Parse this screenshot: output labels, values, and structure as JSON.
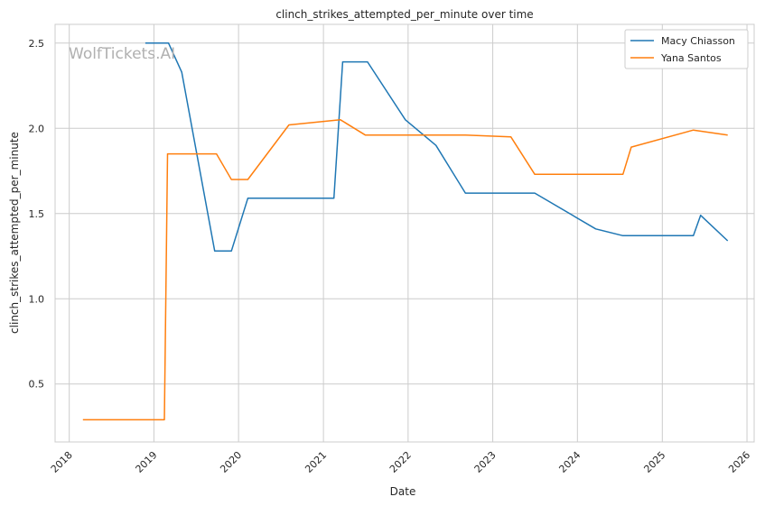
{
  "chart_data": {
    "type": "line",
    "title": "clinch_strikes_attempted_per_minute over time",
    "xlabel": "Date",
    "ylabel": "clinch_strikes_attempted_per_minute",
    "watermark": "WolfTickets.AI",
    "xlim": [
      "2017-11-01",
      "2026-02-01"
    ],
    "ylim": [
      0.16,
      2.61
    ],
    "x_ticks": [
      "2018",
      "2019",
      "2020",
      "2021",
      "2022",
      "2023",
      "2024",
      "2025",
      "2026"
    ],
    "y_ticks": [
      "0.5",
      "1.0",
      "1.5",
      "2.0",
      "2.5"
    ],
    "grid": true,
    "legend_position": "top-right",
    "series": [
      {
        "name": "Macy Chiasson",
        "color": "#1f77b4",
        "points": [
          [
            "2018-11-25",
            2.5
          ],
          [
            "2019-03-05",
            2.5
          ],
          [
            "2019-05-01",
            2.33
          ],
          [
            "2019-09-20",
            1.28
          ],
          [
            "2019-12-01",
            1.28
          ],
          [
            "2020-02-10",
            1.59
          ],
          [
            "2021-02-15",
            1.59
          ],
          [
            "2021-03-25",
            2.39
          ],
          [
            "2021-07-10",
            2.39
          ],
          [
            "2021-12-20",
            2.05
          ],
          [
            "2022-05-01",
            1.9
          ],
          [
            "2022-09-05",
            1.62
          ],
          [
            "2023-07-01",
            1.62
          ],
          [
            "2024-03-20",
            1.41
          ],
          [
            "2024-07-15",
            1.37
          ],
          [
            "2025-05-15",
            1.37
          ],
          [
            "2025-06-15",
            1.49
          ],
          [
            "2025-10-10",
            1.34
          ]
        ]
      },
      {
        "name": "Yana Santos",
        "color": "#ff7f0e",
        "points": [
          [
            "2018-03-01",
            0.29
          ],
          [
            "2019-02-15",
            0.29
          ],
          [
            "2019-03-01",
            1.85
          ],
          [
            "2019-09-28",
            1.85
          ],
          [
            "2019-12-01",
            1.7
          ],
          [
            "2020-02-10",
            1.7
          ],
          [
            "2020-08-05",
            2.02
          ],
          [
            "2021-03-15",
            2.05
          ],
          [
            "2021-07-01",
            1.96
          ],
          [
            "2022-09-05",
            1.96
          ],
          [
            "2023-03-20",
            1.95
          ],
          [
            "2023-07-01",
            1.73
          ],
          [
            "2024-07-15",
            1.73
          ],
          [
            "2024-08-20",
            1.89
          ],
          [
            "2025-05-15",
            1.99
          ],
          [
            "2025-10-10",
            1.96
          ]
        ]
      }
    ]
  }
}
